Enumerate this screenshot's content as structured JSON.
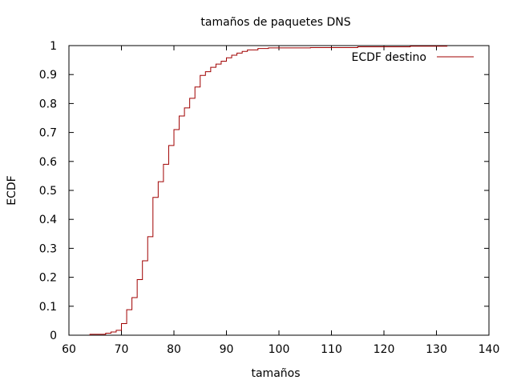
{
  "chart_data": {
    "type": "line",
    "step": true,
    "title": "tamaños de paquetes DNS",
    "xlabel": "tamaños",
    "ylabel": "ECDF",
    "xlim": [
      60,
      140
    ],
    "ylim": [
      0,
      1
    ],
    "xticks": [
      "60",
      "70",
      "80",
      "90",
      "100",
      "110",
      "120",
      "130",
      "140"
    ],
    "yticks": [
      "0",
      "0.1",
      "0.2",
      "0.3",
      "0.4",
      "0.5",
      "0.6",
      "0.7",
      "0.8",
      "0.9",
      "1"
    ],
    "grid": false,
    "legend_position": "top-right",
    "series": [
      {
        "name": "ECDF destino",
        "color": "#a00000",
        "x": [
          64,
          67,
          68,
          69,
          70,
          71,
          72,
          73,
          74,
          75,
          76,
          77,
          78,
          79,
          80,
          81,
          82,
          83,
          84,
          85,
          86,
          87,
          88,
          89,
          90,
          91,
          92,
          93,
          94,
          96,
          98,
          106,
          115,
          125,
          132
        ],
        "y": [
          0.003,
          0.007,
          0.011,
          0.017,
          0.04,
          0.088,
          0.13,
          0.192,
          0.257,
          0.34,
          0.476,
          0.53,
          0.59,
          0.655,
          0.71,
          0.757,
          0.785,
          0.818,
          0.857,
          0.897,
          0.91,
          0.925,
          0.936,
          0.946,
          0.958,
          0.967,
          0.974,
          0.98,
          0.985,
          0.99,
          0.992,
          0.993,
          0.996,
          0.998,
          1.0
        ]
      }
    ]
  }
}
